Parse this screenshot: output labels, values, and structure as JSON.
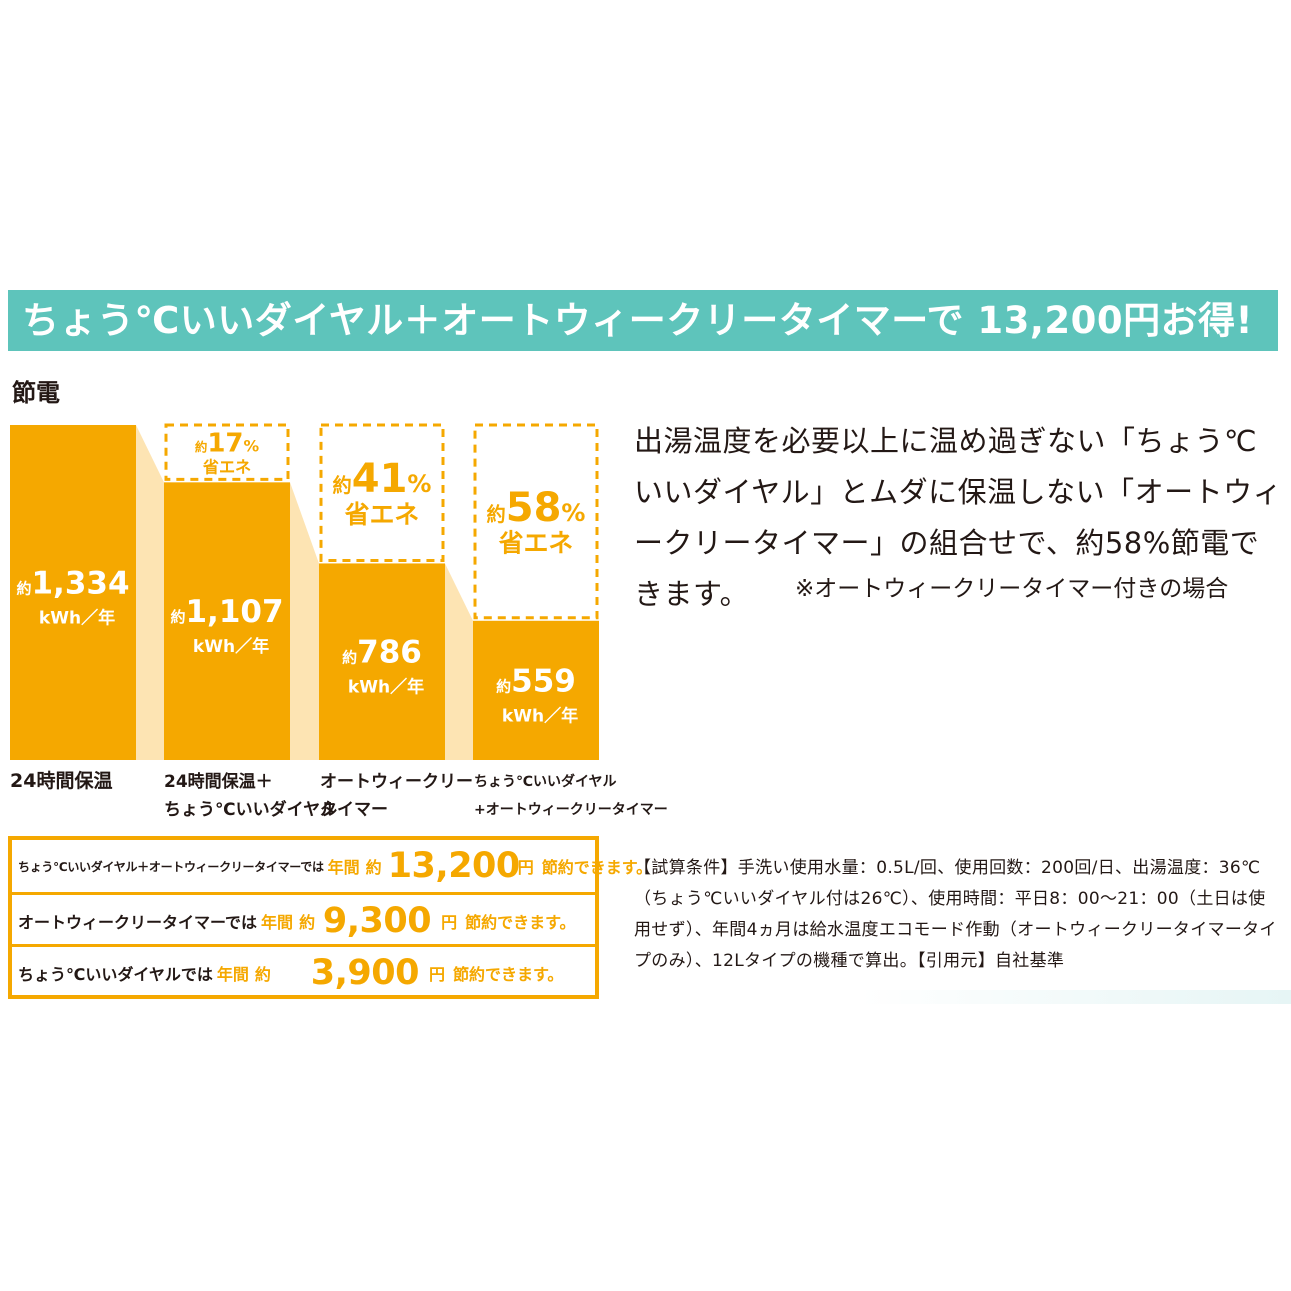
{
  "banner": {
    "title": "ちょう℃いいダイヤル＋オートウィークリータイマーで 13,200円お得!"
  },
  "section": {
    "label": "節電"
  },
  "chart_data": {
    "type": "bar",
    "unit": "kWh／年",
    "bars": [
      {
        "category": "24時間保温",
        "value": 1334,
        "value_text": "1,334",
        "prefix": "約",
        "unit": "kWh／年",
        "saving_percent": null
      },
      {
        "category": "24時間保温＋\nちょう℃いいダイヤル",
        "value": 1107,
        "value_text": "1,107",
        "prefix": "約",
        "unit": "kWh／年",
        "saving_percent": 17
      },
      {
        "category": "オートウィークリー\nタイマー",
        "value": 786,
        "value_text": "786",
        "prefix": "約",
        "unit": "kWh／年",
        "saving_percent": 41
      },
      {
        "category": "ちょう℃いいダイヤル\n+オートウィークリータイマー",
        "value": 559,
        "value_text": "559",
        "prefix": "約",
        "unit": "kWh／年",
        "saving_percent": 58
      }
    ],
    "saving_prefix": "約",
    "saving_unit": "%",
    "saving_label": "省エネ",
    "colors": {
      "bar": "#f5a800",
      "connector": "#fde4b3",
      "dash": "#f5a800"
    }
  },
  "description": {
    "text": "出湯温度を必要以上に温め過ぎない「ちょう℃いいダイヤル」とムダに保温しない「オートウィークリータイマー」の組合せで、約58%節電できます。",
    "note": "※オートウィークリータイマー付きの場合"
  },
  "savings": [
    {
      "lead": "ちょう℃いいダイヤル＋オートウィークリータイマーでは",
      "period": "年間",
      "approx": "約",
      "amount": "13,200",
      "unit": "円",
      "tail": "節約できます。"
    },
    {
      "lead": "オートウィークリータイマーでは",
      "period": "年間",
      "approx": "約",
      "amount": "9,300",
      "unit": "円",
      "tail": "節約できます。"
    },
    {
      "lead": "ちょう℃いいダイヤルでは",
      "period": "年間",
      "approx": "約",
      "amount": "3,900",
      "unit": "円",
      "tail": "節約できます。"
    }
  ],
  "conditions": {
    "text": "【試算条件】手洗い使用水量：0.5L/回、使用回数：200回/日、出湯温度：36℃（ちょう℃いいダイヤル付は26℃）、使用時間：平日8：00〜21：00（土日は使用せず）、年間4ヵ月は給水温度エコモード作動（オートウィークリータイマータイプのみ）、12Lタイプの機種で算出。【引用元】自社基準"
  }
}
